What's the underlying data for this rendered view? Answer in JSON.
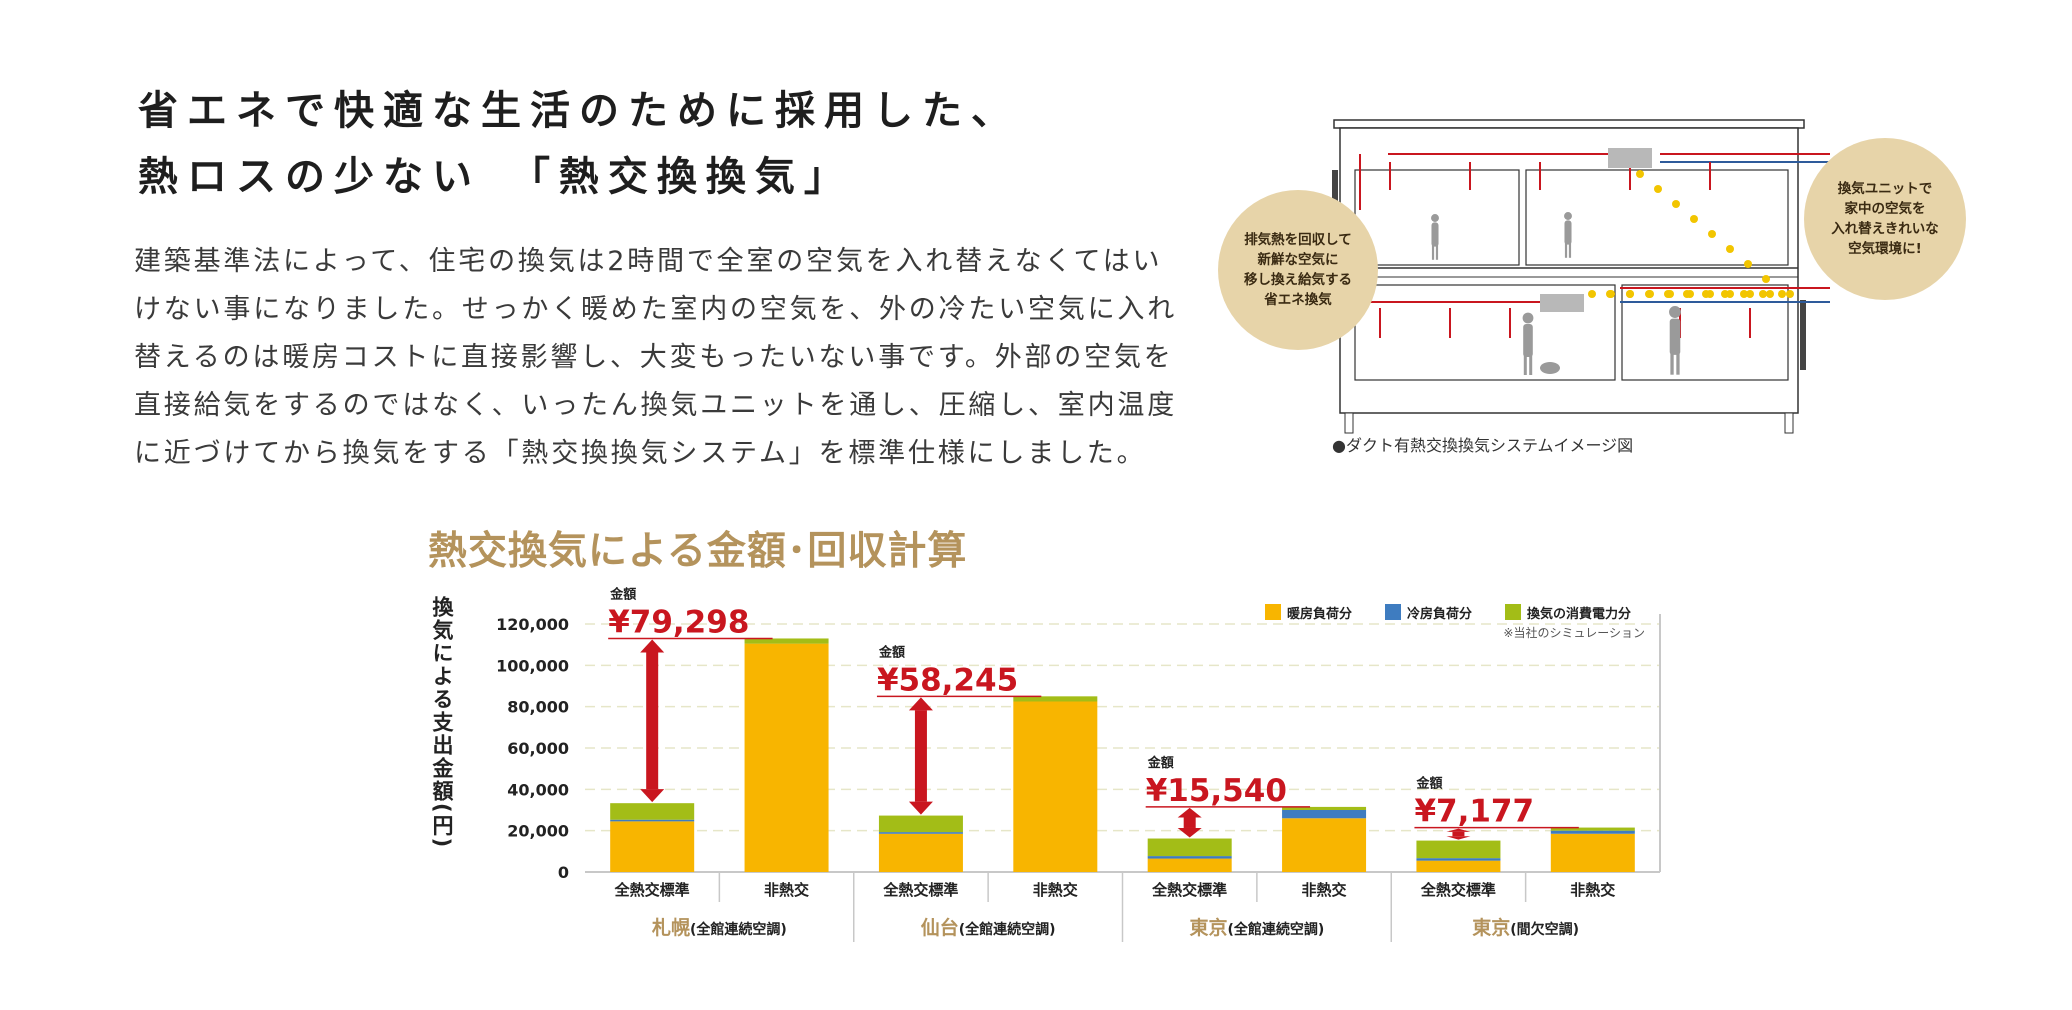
{
  "heading": {
    "line1": "省エネで快適な生活のために採用した、",
    "line2_prefix": "熱ロスの少ない",
    "line2_highlight": "「熱交換換気」"
  },
  "body": {
    "lines": [
      "建築基準法によって、住宅の換気は2時間で全室の空気を入れ替えなくてはい",
      "けない事になりました。せっかく暖めた室内の空気を、外の冷たい空気に入れ",
      "替えるのは暖房コストに直接影響し、大変もったいない事です。外部の空気を",
      "直接給気をするのではなく、いったん換気ユニットを通し、圧縮し、室内温度",
      "に近づけてから換気をする「熱交換換気システム」を標準仕様にしました。"
    ]
  },
  "diagram": {
    "bubble_left": "排気熱を回収して\n新鮮な空気に\n移し換え給気する\n省エネ換気",
    "bubble_right": "換気ユニットで\n家中の空気を\n入れ替えきれいな\n空気環境に!",
    "caption": "●ダクト有熱交換換気システムイメージ図",
    "colors": {
      "supply": "#c9161f",
      "exhaust": "#2e5b9b",
      "flow": "#f2c500",
      "unit": "#b8b8b8"
    }
  },
  "chart_title": "熱交換気による金額･回収計算",
  "chart_data": {
    "type": "bar",
    "stacked": true,
    "ylabel": "換気による支出金額(円)",
    "ylim": [
      0,
      120000
    ],
    "yticks": [
      0,
      20000,
      40000,
      60000,
      80000,
      100000,
      120000
    ],
    "ytick_labels": [
      "0",
      "20,000",
      "40,000",
      "60,000",
      "80,000",
      "100,000",
      "120,000"
    ],
    "grid": true,
    "legend_position": "top-right",
    "note": "※当社のシミュレーション",
    "categories": [
      "全熱交標準",
      "非熱交",
      "全熱交標準",
      "非熱交",
      "全熱交標準",
      "非熱交",
      "全熱交標準",
      "非熱交"
    ],
    "groups": [
      {
        "name": "札幌",
        "sub": "(全館連続空調)"
      },
      {
        "name": "仙台",
        "sub": "(全館連続空調)"
      },
      {
        "name": "東京",
        "sub": "(全館連続空調)"
      },
      {
        "name": "東京",
        "sub": "(間欠空調)"
      }
    ],
    "series": [
      {
        "name": "暖房負荷分",
        "color": "#f8b500",
        "values": [
          24500,
          110500,
          18500,
          82500,
          6500,
          26000,
          5500,
          18500
        ]
      },
      {
        "name": "冷房負荷分",
        "color": "#3e7cc0",
        "values": [
          800,
          0,
          800,
          0,
          1200,
          4000,
          1200,
          1500
        ]
      },
      {
        "name": "換気の消費電力分",
        "color": "#a3bd17",
        "values": [
          8000,
          2500,
          8000,
          2500,
          8500,
          1500,
          8500,
          1500
        ]
      }
    ],
    "savings": [
      {
        "label": "金額",
        "amount": "¥79,298"
      },
      {
        "label": "金額",
        "amount": "¥58,245"
      },
      {
        "label": "金額",
        "amount": "¥15,540"
      },
      {
        "label": "金額",
        "amount": "¥7,177"
      }
    ],
    "colors": {
      "savings": "#c9161f",
      "group_name": "#b4935c",
      "axis": "#c8c8c8",
      "grid": "#e6e6c8"
    }
  }
}
